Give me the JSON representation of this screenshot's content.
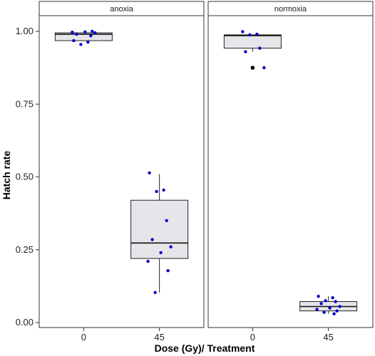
{
  "chart_data": {
    "type": "boxplot",
    "xlabel": "Dose (Gy)/ Treatment",
    "ylabel": "Hatch rate",
    "ylim": [
      0,
      1
    ],
    "y_ticks": [
      "0.00",
      "0.25",
      "0.50",
      "0.75",
      "1.00"
    ],
    "y_tick_values": [
      0,
      0.25,
      0.5,
      0.75,
      1.0
    ],
    "facets": [
      "anoxia",
      "normoxia"
    ],
    "categories": [
      "0",
      "45"
    ],
    "colors": {
      "point": "#0000cc",
      "outlier": "#000000",
      "box_fill": "#e6e6ea",
      "strip_fill": "#ffffff"
    },
    "panels": [
      {
        "facet": "anoxia",
        "groups": [
          {
            "category": "0",
            "box": {
              "q1": 0.968,
              "median": 0.99,
              "q3": 0.995,
              "whisker_low": 0.968,
              "whisker_high": 0.995
            },
            "points": [
              0.968,
              0.963,
              0.955,
              0.985,
              0.99,
              0.995,
              0.998,
              0.997,
              1.0
            ]
          },
          {
            "category": "45",
            "box": {
              "q1": 0.22,
              "median": 0.273,
              "q3": 0.42,
              "whisker_low": 0.103,
              "whisker_high": 0.51
            },
            "points": [
              0.514,
              0.455,
              0.45,
              0.35,
              0.285,
              0.26,
              0.24,
              0.21,
              0.178,
              0.103
            ]
          }
        ]
      },
      {
        "facet": "normoxia",
        "groups": [
          {
            "category": "0",
            "box": {
              "q1": 0.942,
              "median": 0.985,
              "q3": 0.988,
              "whisker_low": 0.93,
              "whisker_high": 0.988
            },
            "points": [
              0.999,
              0.99,
              0.988,
              0.942,
              0.93,
              0.875
            ],
            "outliers": [
              0.875
            ]
          },
          {
            "category": "45",
            "box": {
              "q1": 0.04,
              "median": 0.055,
              "q3": 0.072,
              "whisker_low": 0.03,
              "whisker_high": 0.09
            },
            "points": [
              0.09,
              0.085,
              0.075,
              0.072,
              0.065,
              0.055,
              0.05,
              0.045,
              0.04,
              0.035,
              0.03
            ]
          }
        ]
      }
    ]
  }
}
